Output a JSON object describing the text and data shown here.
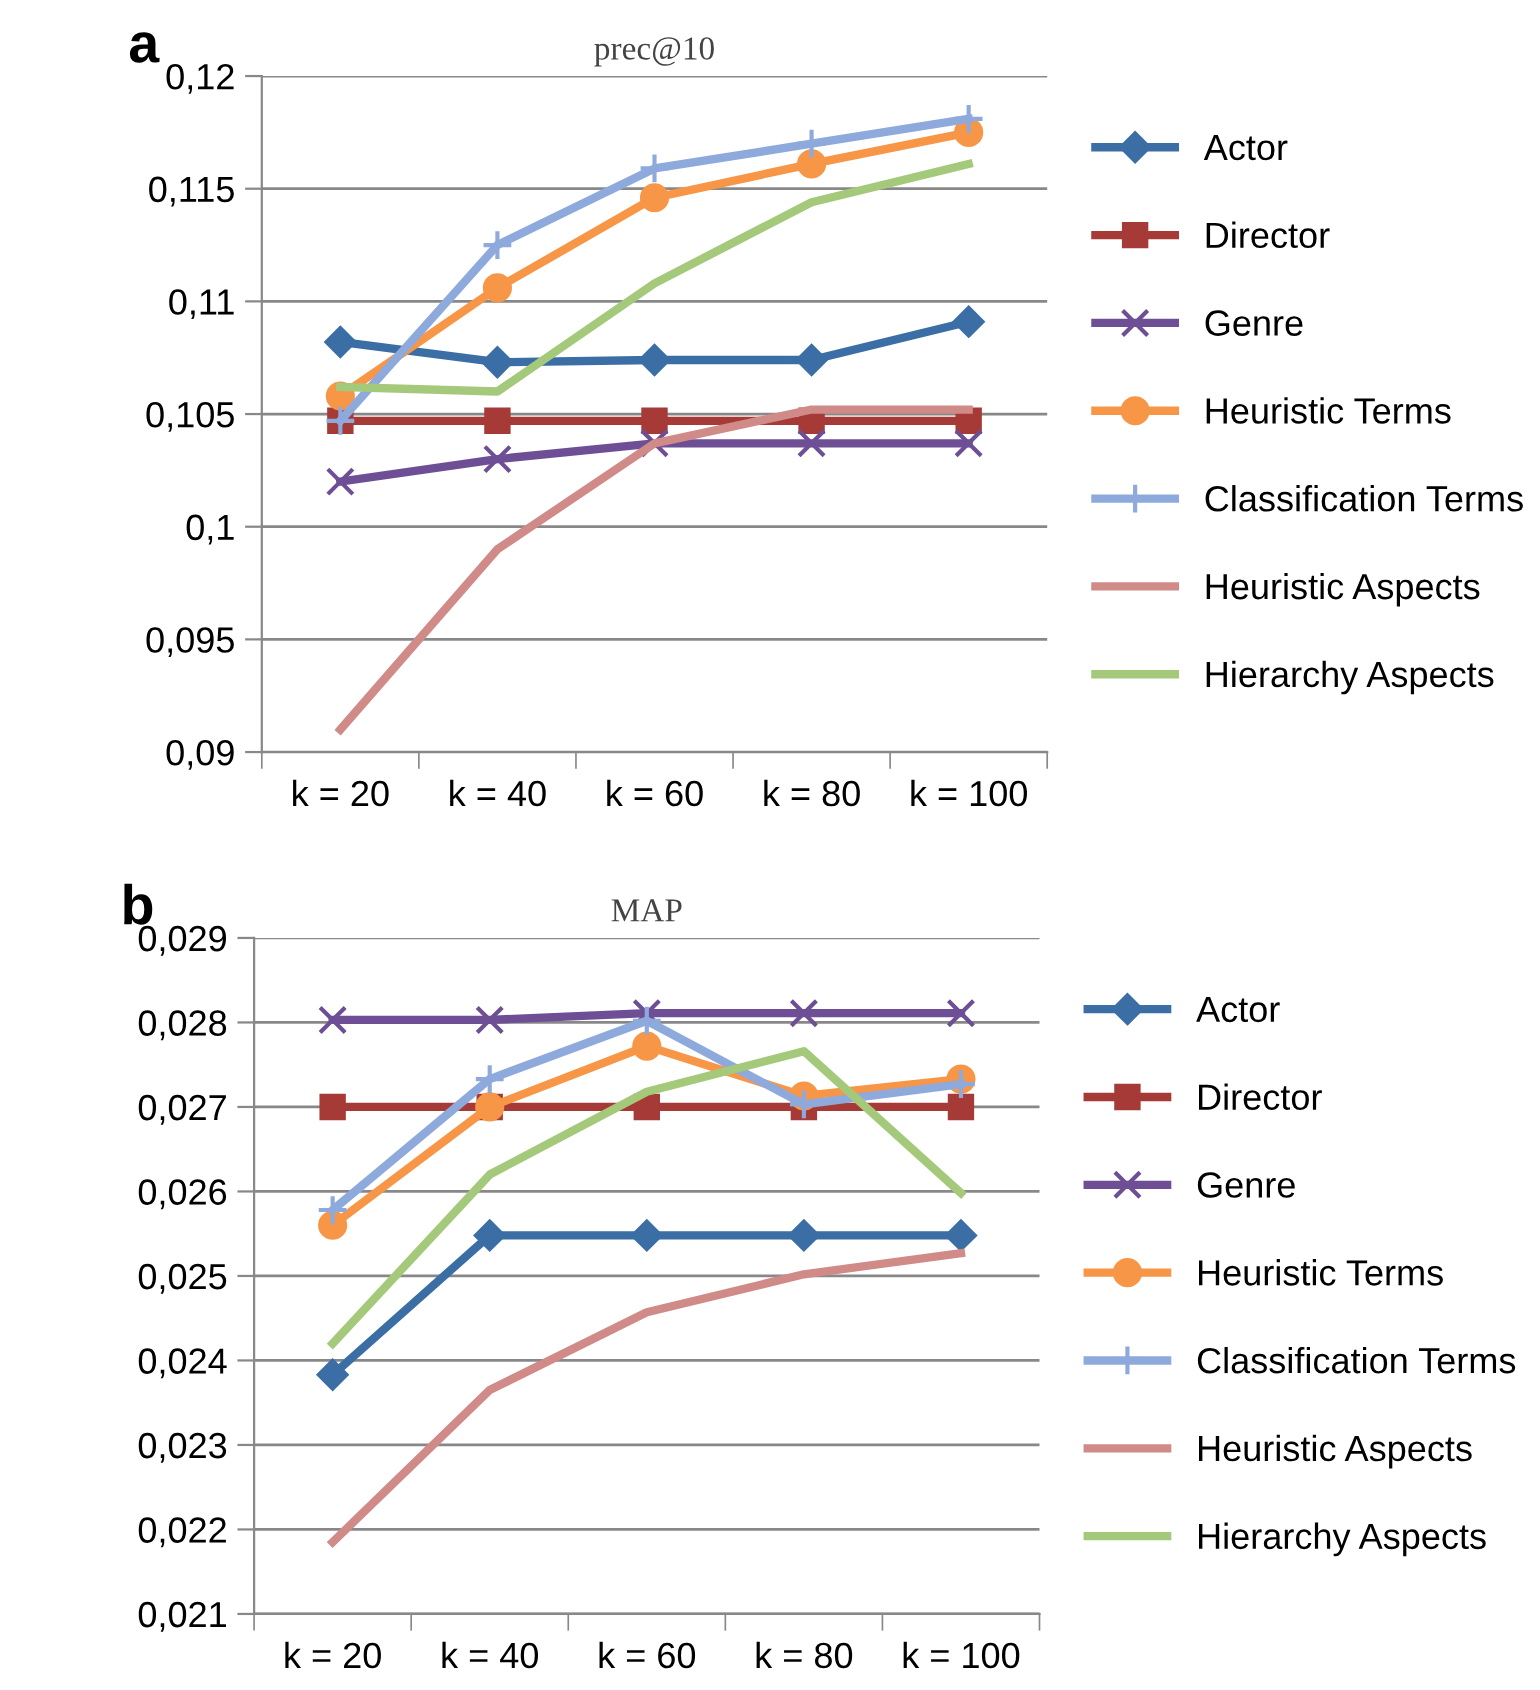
{
  "chart_data": [
    {
      "type": "line",
      "title": "prec@10",
      "categories": [
        "k = 20",
        "k = 40",
        "k = 60",
        "k = 80",
        "k = 100"
      ],
      "series": [
        {
          "name": "Actor",
          "color": "#3a6ea5",
          "marker": "diamond",
          "values": [
            0.1082,
            0.1073,
            0.1074,
            0.1074,
            0.1091
          ]
        },
        {
          "name": "Director",
          "color": "#a63a36",
          "marker": "square",
          "values": [
            0.1047,
            0.1047,
            0.1047,
            0.1047,
            0.1047
          ]
        },
        {
          "name": "Genre",
          "color": "#6e4f96",
          "marker": "cross",
          "values": [
            0.102,
            0.103,
            0.1037,
            0.1037,
            0.1037
          ]
        },
        {
          "name": "Heuristic Terms",
          "color": "#f79646",
          "marker": "circle",
          "values": [
            0.1058,
            0.1106,
            0.1146,
            0.1161,
            0.1175
          ]
        },
        {
          "name": "Classification Terms",
          "color": "#8eaadc",
          "marker": "plus",
          "values": [
            0.1047,
            0.1125,
            0.1159,
            0.117,
            0.1181
          ]
        },
        {
          "name": "Heuristic Aspects",
          "color": "#d08a88",
          "marker": "none",
          "values": [
            0.091,
            0.099,
            0.1037,
            0.1052,
            0.1052
          ]
        },
        {
          "name": "Hierarchy Aspects",
          "color": "#a4c97a",
          "marker": "none",
          "values": [
            0.1062,
            0.106,
            0.1108,
            0.1144,
            0.1161
          ]
        }
      ],
      "ylim": [
        0.09,
        0.12
      ],
      "yticks": [
        {
          "value": 0.09,
          "label": "0,09"
        },
        {
          "value": 0.095,
          "label": "0,095"
        },
        {
          "value": 0.1,
          "label": "0,1"
        },
        {
          "value": 0.105,
          "label": "0,105"
        },
        {
          "value": 0.11,
          "label": "0,11"
        },
        {
          "value": 0.115,
          "label": "0,115"
        },
        {
          "value": 0.12,
          "label": "0,12"
        }
      ],
      "grid": "y",
      "legend": "right",
      "annotations": [
        "a"
      ]
    },
    {
      "type": "line",
      "title": "MAP",
      "categories": [
        "k = 20",
        "k = 40",
        "k = 60",
        "k = 80",
        "k = 100"
      ],
      "series": [
        {
          "name": "Actor",
          "color": "#3a6ea5",
          "marker": "diamond",
          "values": [
            0.02383,
            0.02548,
            0.02548,
            0.02548,
            0.02548
          ]
        },
        {
          "name": "Director",
          "color": "#a63a36",
          "marker": "square",
          "values": [
            0.027,
            0.027,
            0.027,
            0.027,
            0.027
          ]
        },
        {
          "name": "Genre",
          "color": "#6e4f96",
          "marker": "cross",
          "values": [
            0.02803,
            0.02803,
            0.02811,
            0.02811,
            0.02811
          ]
        },
        {
          "name": "Heuristic Terms",
          "color": "#f79646",
          "marker": "circle",
          "values": [
            0.0256,
            0.027,
            0.02772,
            0.02713,
            0.02733
          ]
        },
        {
          "name": "Classification Terms",
          "color": "#8eaadc",
          "marker": "plus",
          "values": [
            0.02578,
            0.02733,
            0.02802,
            0.02703,
            0.02727
          ]
        },
        {
          "name": "Heuristic Aspects",
          "color": "#d08a88",
          "marker": "none",
          "values": [
            0.02185,
            0.02365,
            0.02457,
            0.02502,
            0.02527
          ]
        },
        {
          "name": "Hierarchy Aspects",
          "color": "#a4c97a",
          "marker": "none",
          "values": [
            0.0242,
            0.0262,
            0.02718,
            0.02766,
            0.02598
          ]
        }
      ],
      "ylim": [
        0.021,
        0.029
      ],
      "yticks": [
        {
          "value": 0.021,
          "label": "0,021"
        },
        {
          "value": 0.022,
          "label": "0,022"
        },
        {
          "value": 0.023,
          "label": "0,023"
        },
        {
          "value": 0.024,
          "label": "0,024"
        },
        {
          "value": 0.025,
          "label": "0,025"
        },
        {
          "value": 0.026,
          "label": "0,026"
        },
        {
          "value": 0.027,
          "label": "0,027"
        },
        {
          "value": 0.028,
          "label": "0,028"
        },
        {
          "value": 0.029,
          "label": "0,029"
        }
      ],
      "grid": "y",
      "legend": "right",
      "annotations": [
        "b"
      ]
    }
  ]
}
